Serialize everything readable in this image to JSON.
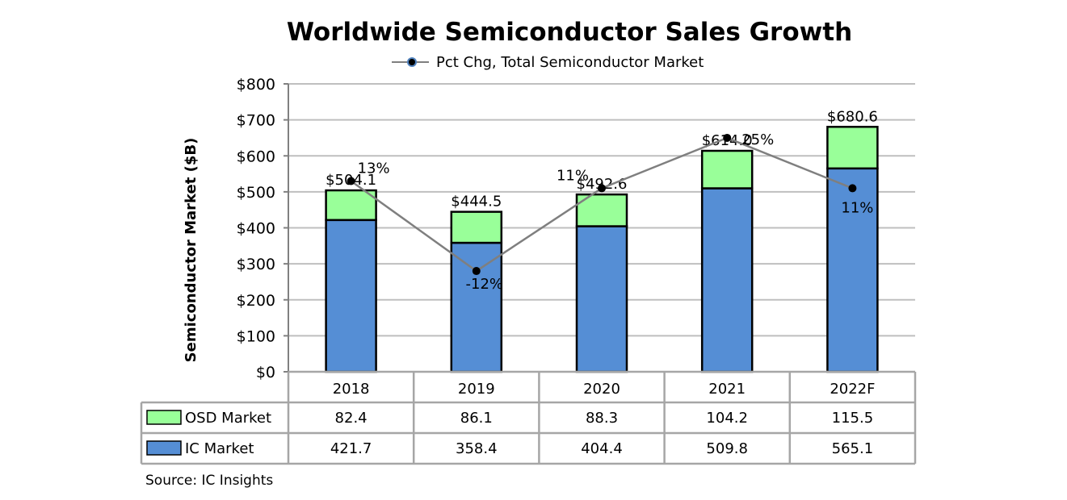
{
  "chart_data": {
    "type": "bar",
    "title": "Worldwide Semiconductor Sales Growth",
    "ylabel": "Semiconductor Market ($B)",
    "ylim": [
      0,
      800
    ],
    "yticks": [
      0,
      100,
      200,
      300,
      400,
      500,
      600,
      700,
      800
    ],
    "ytick_labels": [
      "$0",
      "$100",
      "$200",
      "$300",
      "$400",
      "$500",
      "$600",
      "$700",
      "$800"
    ],
    "categories": [
      "2018",
      "2019",
      "2020",
      "2021",
      "2022F"
    ],
    "stacked": true,
    "series": [
      {
        "name": "IC Market",
        "color": "#558ed5",
        "values": [
          421.7,
          358.4,
          404.4,
          509.8,
          565.1
        ],
        "value_labels": [
          "421.7",
          "358.4",
          "404.4",
          "509.8",
          "565.1"
        ]
      },
      {
        "name": "OSD Market",
        "color": "#99ff99",
        "values": [
          82.4,
          86.1,
          88.3,
          104.2,
          115.5
        ],
        "value_labels": [
          "82.4",
          "86.1",
          "88.3",
          "104.2",
          "115.5"
        ]
      }
    ],
    "totals": [
      504.1,
      444.5,
      492.6,
      614.0,
      680.6
    ],
    "total_labels": [
      "$504.1",
      "$444.5",
      "$492.6",
      "$614.0",
      "$680.6"
    ],
    "line_series": {
      "name": "Pct Chg, Total Semiconductor Market",
      "values": [
        13,
        -12,
        11,
        25,
        11
      ],
      "labels": [
        "13%",
        "-12%",
        "11%",
        "25%",
        "11%"
      ],
      "secondary_ylim": [
        -40,
        40
      ],
      "color": "#7f7f7f"
    },
    "grid": true,
    "legend": "top-center",
    "data_table": true
  },
  "source": "Source: IC Insights"
}
